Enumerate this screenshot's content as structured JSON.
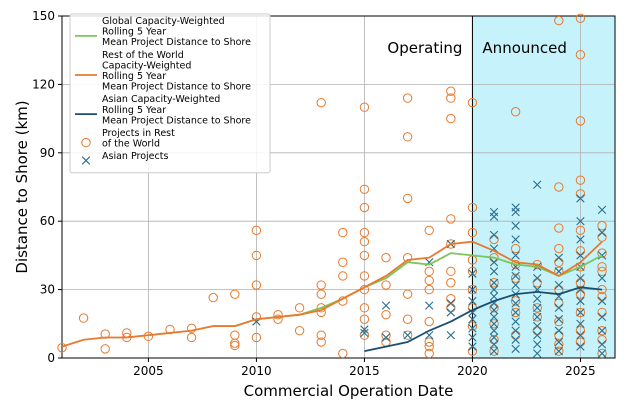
{
  "chart_data": {
    "type": "scatter",
    "xlabel": "Commercial Operation Date",
    "ylabel": "Distance to Shore (km)",
    "xlim": [
      2001,
      2026.6
    ],
    "ylim": [
      0,
      150
    ],
    "xticks": [
      2005,
      2010,
      2015,
      2020,
      2025
    ],
    "yticks": [
      0,
      30,
      60,
      90,
      120,
      150
    ],
    "grid": true,
    "legend_position": "top-left",
    "regions": [
      {
        "label": "Operating",
        "x_start": 2001,
        "x_end": 2020
      },
      {
        "label": "Announced",
        "x_start": 2020,
        "x_end": 2026.6,
        "color": "#c6f3fb"
      }
    ],
    "series": [
      {
        "name": "Global Capacity-Weighted\nRolling 5 Year\nMean Project Distance to Shore",
        "kind": "line",
        "color": "#7dc55a",
        "x": [
          2009,
          2010,
          2011,
          2012,
          2013,
          2014,
          2015,
          2016,
          2017,
          2018,
          2019,
          2020,
          2021,
          2022,
          2023,
          2024,
          2025,
          2026
        ],
        "y": [
          14,
          17,
          18,
          19,
          22,
          26,
          31,
          35,
          42,
          41,
          46,
          45,
          44,
          41,
          40,
          36,
          40,
          45
        ]
      },
      {
        "name": "Rest of the World\nCapacity-Weighted\nRolling 5 Year\nMean Project Distance to Shore",
        "kind": "line",
        "color": "#e8792d",
        "x": [
          2001,
          2002,
          2003,
          2004,
          2005,
          2006,
          2007,
          2008,
          2009,
          2010,
          2011,
          2012,
          2013,
          2014,
          2015,
          2016,
          2017,
          2018,
          2019,
          2020,
          2021,
          2022,
          2023,
          2024,
          2025,
          2026
        ],
        "y": [
          5,
          8,
          9,
          9,
          10,
          11,
          12,
          14,
          14,
          17,
          18,
          19,
          21,
          26,
          31,
          36,
          43,
          44,
          50,
          51,
          47,
          42,
          41,
          36,
          42,
          51
        ]
      },
      {
        "name": "Asian Capacity-Weighted\nRolling 5 Year\nMean Project Distance to Shore",
        "kind": "line",
        "color": "#1a4f72",
        "x": [
          2015,
          2016,
          2017,
          2018,
          2019,
          2020,
          2021,
          2022,
          2023,
          2024,
          2025,
          2026
        ],
        "y": [
          3,
          5,
          7,
          12,
          16,
          21,
          25,
          28,
          29,
          28,
          31,
          30
        ]
      },
      {
        "name": "Projects in Rest\nof the World",
        "kind": "scatter",
        "marker": "circle",
        "color": "#e8792d",
        "points": [
          [
            2001.0,
            4.5
          ],
          [
            2002.0,
            17.5
          ],
          [
            2003.0,
            10.5
          ],
          [
            2003.0,
            4.0
          ],
          [
            2004.0,
            11.0
          ],
          [
            2004.0,
            9.0
          ],
          [
            2005.0,
            9.5
          ],
          [
            2006.0,
            12.5
          ],
          [
            2007.0,
            13.0
          ],
          [
            2007.0,
            9.0
          ],
          [
            2008.0,
            26.5
          ],
          [
            2009.0,
            28.0
          ],
          [
            2009.0,
            10.0
          ],
          [
            2009.0,
            6.5
          ],
          [
            2009.0,
            5.5
          ],
          [
            2010.0,
            56.0
          ],
          [
            2010.0,
            45.0
          ],
          [
            2010.0,
            32.0
          ],
          [
            2010.0,
            18.0
          ],
          [
            2010.0,
            9.0
          ],
          [
            2011.0,
            19.0
          ],
          [
            2011.0,
            17.0
          ],
          [
            2012.0,
            22.0
          ],
          [
            2012.0,
            12.0
          ],
          [
            2013.0,
            112.0
          ],
          [
            2013.0,
            32.0
          ],
          [
            2013.0,
            28.0
          ],
          [
            2013.0,
            22.0
          ],
          [
            2013.0,
            20.0
          ],
          [
            2013.0,
            10.0
          ],
          [
            2013.0,
            7.0
          ],
          [
            2014.0,
            55.0
          ],
          [
            2014.0,
            42.0
          ],
          [
            2014.0,
            36.0
          ],
          [
            2014.0,
            25.0
          ],
          [
            2014.0,
            2.0
          ],
          [
            2015.0,
            110.0
          ],
          [
            2015.0,
            74.0
          ],
          [
            2015.0,
            66.0
          ],
          [
            2015.0,
            55.0
          ],
          [
            2015.0,
            51.0
          ],
          [
            2015.0,
            45.0
          ],
          [
            2015.0,
            36.0
          ],
          [
            2015.0,
            30.0
          ],
          [
            2015.0,
            22.0
          ],
          [
            2015.0,
            17.0
          ],
          [
            2015.0,
            10.0
          ],
          [
            2016.0,
            44.0
          ],
          [
            2016.0,
            32.0
          ],
          [
            2016.0,
            19.0
          ],
          [
            2016.0,
            10.0
          ],
          [
            2016.0,
            7.0
          ],
          [
            2017.0,
            114.0
          ],
          [
            2017.0,
            97.0
          ],
          [
            2017.0,
            70.0
          ],
          [
            2017.0,
            44.0
          ],
          [
            2017.0,
            28.0
          ],
          [
            2017.0,
            17.0
          ],
          [
            2017.0,
            10.0
          ],
          [
            2018.0,
            56.0
          ],
          [
            2018.0,
            38.0
          ],
          [
            2018.0,
            34.0
          ],
          [
            2018.0,
            30.0
          ],
          [
            2018.0,
            16.0
          ],
          [
            2018.0,
            7.0
          ],
          [
            2018.0,
            5.0
          ],
          [
            2018.0,
            2.0
          ],
          [
            2019.0,
            117.0
          ],
          [
            2019.0,
            114.0
          ],
          [
            2019.0,
            105.0
          ],
          [
            2019.0,
            61.0
          ],
          [
            2019.0,
            50.0
          ],
          [
            2019.0,
            38.0
          ],
          [
            2019.0,
            33.0
          ],
          [
            2019.0,
            26.0
          ],
          [
            2019.0,
            22.0
          ],
          [
            2020.0,
            112.0
          ],
          [
            2020.0,
            66.0
          ],
          [
            2020.0,
            55.0
          ],
          [
            2020.0,
            43.0
          ],
          [
            2020.0,
            38.0
          ],
          [
            2020.0,
            30.0
          ],
          [
            2020.0,
            22.0
          ],
          [
            2020.0,
            14.0
          ],
          [
            2020.0,
            3.0
          ],
          [
            2021.0,
            52.0
          ],
          [
            2021.0,
            44.0
          ],
          [
            2021.0,
            33.0
          ],
          [
            2021.0,
            22.0
          ],
          [
            2021.0,
            15.0
          ],
          [
            2021.0,
            8.0
          ],
          [
            2021.0,
            3.0
          ],
          [
            2022.0,
            108.0
          ],
          [
            2022.0,
            48.0
          ],
          [
            2022.0,
            41.0
          ],
          [
            2022.0,
            35.0
          ],
          [
            2022.0,
            25.0
          ],
          [
            2022.0,
            20.0
          ],
          [
            2022.0,
            10.0
          ],
          [
            2023.0,
            41.0
          ],
          [
            2023.0,
            33.0
          ],
          [
            2023.0,
            22.0
          ],
          [
            2023.0,
            18.0
          ],
          [
            2023.0,
            12.0
          ],
          [
            2024.0,
            148.0
          ],
          [
            2024.0,
            75.0
          ],
          [
            2024.0,
            57.0
          ],
          [
            2024.0,
            48.0
          ],
          [
            2024.0,
            42.0
          ],
          [
            2024.0,
            38.0
          ],
          [
            2024.0,
            30.0
          ],
          [
            2024.0,
            24.0
          ],
          [
            2024.0,
            16.0
          ],
          [
            2024.0,
            10.0
          ],
          [
            2024.0,
            6.0
          ],
          [
            2024.0,
            3.0
          ],
          [
            2025.0,
            149.0
          ],
          [
            2025.0,
            133.0
          ],
          [
            2025.0,
            104.0
          ],
          [
            2025.0,
            78.0
          ],
          [
            2025.0,
            72.0
          ],
          [
            2025.0,
            56.0
          ],
          [
            2025.0,
            47.0
          ],
          [
            2025.0,
            40.0
          ],
          [
            2025.0,
            33.0
          ],
          [
            2025.0,
            28.0
          ],
          [
            2025.0,
            20.0
          ],
          [
            2025.0,
            12.0
          ],
          [
            2025.0,
            7.0
          ],
          [
            2026.0,
            58.0
          ],
          [
            2026.0,
            53.0
          ],
          [
            2026.0,
            46.0
          ],
          [
            2026.0,
            40.0
          ],
          [
            2026.0,
            38.0
          ],
          [
            2026.0,
            30.0
          ],
          [
            2026.0,
            27.0
          ],
          [
            2026.0,
            20.0
          ],
          [
            2026.0,
            12.0
          ],
          [
            2026.0,
            8.0
          ],
          [
            2026.0,
            2.0
          ]
        ]
      },
      {
        "name": "Asian Projects",
        "kind": "scatter",
        "marker": "x",
        "color": "#2a6e8c",
        "points": [
          [
            2010.0,
            16.0
          ],
          [
            2015.0,
            12.5
          ],
          [
            2015.0,
            11.0
          ],
          [
            2016.0,
            23.0
          ],
          [
            2016.0,
            9.0
          ],
          [
            2017.0,
            10.0
          ],
          [
            2018.0,
            42.0
          ],
          [
            2018.0,
            23.0
          ],
          [
            2018.0,
            10.0
          ],
          [
            2019.0,
            50.0
          ],
          [
            2019.0,
            24.0
          ],
          [
            2019.0,
            20.0
          ],
          [
            2019.0,
            10.0
          ],
          [
            2020.0,
            37.0
          ],
          [
            2020.0,
            30.0
          ],
          [
            2020.0,
            25.0
          ],
          [
            2020.0,
            20.0
          ],
          [
            2020.0,
            17.0
          ],
          [
            2020.0,
            13.0
          ],
          [
            2020.0,
            9.0
          ],
          [
            2020.0,
            5.0
          ],
          [
            2021.0,
            64.0
          ],
          [
            2021.0,
            62.0
          ],
          [
            2021.0,
            54.0
          ],
          [
            2021.0,
            48.0
          ],
          [
            2021.0,
            42.0
          ],
          [
            2021.0,
            38.0
          ],
          [
            2021.0,
            33.0
          ],
          [
            2021.0,
            30.0
          ],
          [
            2021.0,
            27.0
          ],
          [
            2021.0,
            24.0
          ],
          [
            2021.0,
            21.0
          ],
          [
            2021.0,
            18.0
          ],
          [
            2021.0,
            15.0
          ],
          [
            2021.0,
            12.0
          ],
          [
            2021.0,
            9.0
          ],
          [
            2021.0,
            6.0
          ],
          [
            2021.0,
            3.0
          ],
          [
            2022.0,
            66.0
          ],
          [
            2022.0,
            64.0
          ],
          [
            2022.0,
            58.0
          ],
          [
            2022.0,
            52.0
          ],
          [
            2022.0,
            45.0
          ],
          [
            2022.0,
            40.0
          ],
          [
            2022.0,
            36.0
          ],
          [
            2022.0,
            32.0
          ],
          [
            2022.0,
            28.0
          ],
          [
            2022.0,
            24.0
          ],
          [
            2022.0,
            20.0
          ],
          [
            2022.0,
            16.0
          ],
          [
            2022.0,
            12.0
          ],
          [
            2022.0,
            8.0
          ],
          [
            2022.0,
            4.0
          ],
          [
            2023.0,
            76.0
          ],
          [
            2023.0,
            40.0
          ],
          [
            2023.0,
            35.0
          ],
          [
            2023.0,
            30.0
          ],
          [
            2023.0,
            26.0
          ],
          [
            2023.0,
            22.0
          ],
          [
            2023.0,
            18.0
          ],
          [
            2023.0,
            14.0
          ],
          [
            2023.0,
            10.0
          ],
          [
            2023.0,
            6.0
          ],
          [
            2023.0,
            2.0
          ],
          [
            2024.0,
            44.0
          ],
          [
            2024.0,
            38.0
          ],
          [
            2024.0,
            32.0
          ],
          [
            2024.0,
            27.0
          ],
          [
            2024.0,
            22.0
          ],
          [
            2024.0,
            17.0
          ],
          [
            2024.0,
            12.0
          ],
          [
            2024.0,
            7.0
          ],
          [
            2024.0,
            3.0
          ],
          [
            2025.0,
            70.0
          ],
          [
            2025.0,
            60.0
          ],
          [
            2025.0,
            52.0
          ],
          [
            2025.0,
            45.0
          ],
          [
            2025.0,
            40.0
          ],
          [
            2025.0,
            35.0
          ],
          [
            2025.0,
            30.0
          ],
          [
            2025.0,
            25.0
          ],
          [
            2025.0,
            20.0
          ],
          [
            2025.0,
            15.0
          ],
          [
            2025.0,
            10.0
          ],
          [
            2025.0,
            5.0
          ],
          [
            2026.0,
            65.0
          ],
          [
            2026.0,
            55.0
          ],
          [
            2026.0,
            45.0
          ],
          [
            2026.0,
            35.0
          ],
          [
            2026.0,
            25.0
          ],
          [
            2026.0,
            18.0
          ],
          [
            2026.0,
            12.0
          ],
          [
            2026.0,
            6.0
          ],
          [
            2026.0,
            2.0
          ]
        ]
      }
    ]
  }
}
